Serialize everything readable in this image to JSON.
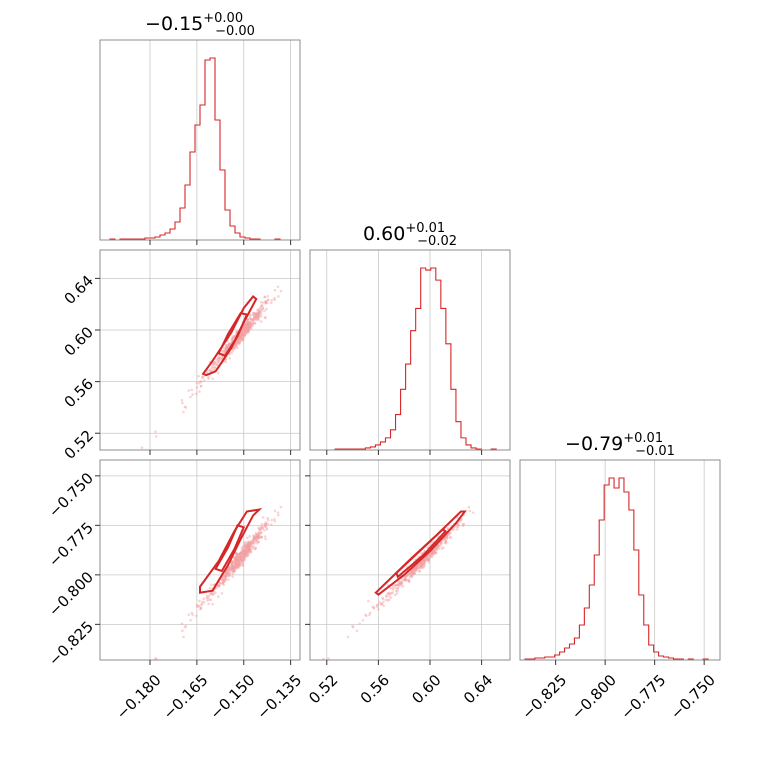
{
  "colors": {
    "series": "#d62728",
    "scatter": "#f2a0a2",
    "frame": "#8c8c8c",
    "grid": "#c8c8c8"
  },
  "chart_data": {
    "type": "corner",
    "parameters": [
      {
        "range": [
          -0.196,
          -0.132
        ],
        "ticks": [
          -0.18,
          -0.165,
          -0.15,
          -0.135
        ],
        "tick_labels": [
          "−0.180",
          "−0.165",
          "−0.150",
          "−0.135"
        ],
        "title": {
          "median": "−0.15",
          "plus": "+0.00",
          "minus": "−0.00"
        },
        "hist": {
          "edges_start": -0.196,
          "bin_width": 0.0016,
          "counts": [
            0,
            0,
            1,
            0,
            1,
            1,
            1,
            1,
            1,
            2,
            2,
            3,
            5,
            7,
            11,
            18,
            32,
            55,
            88,
            115,
            135,
            180,
            182,
            120,
            70,
            30,
            14,
            7,
            3,
            2,
            1,
            1,
            0,
            0,
            0,
            1,
            0,
            0,
            0,
            0
          ]
        }
      },
      {
        "range": [
          0.507,
          0.662
        ],
        "ticks": [
          0.52,
          0.56,
          0.6,
          0.64
        ],
        "tick_labels": [
          "0.52",
          "0.56",
          "0.60",
          "0.64"
        ],
        "title": {
          "median": "0.60",
          "plus": "+0.01",
          "minus": "−0.02"
        },
        "hist": {
          "edges_start": 0.507,
          "bin_width": 0.0039,
          "counts": [
            0,
            0,
            0,
            0,
            0,
            1,
            1,
            1,
            1,
            1,
            1,
            2,
            3,
            5,
            8,
            12,
            20,
            35,
            60,
            85,
            118,
            140,
            180,
            178,
            180,
            168,
            140,
            105,
            60,
            28,
            12,
            5,
            2,
            1,
            0,
            0,
            1,
            0,
            0,
            0
          ]
        }
      },
      {
        "range": [
          -0.843,
          -0.742
        ],
        "ticks": [
          -0.825,
          -0.8,
          -0.775,
          -0.75
        ],
        "tick_labels": [
          "−0.825",
          "−0.800",
          "−0.775",
          "−0.750"
        ],
        "title": {
          "median": "−0.79",
          "plus": "+0.01",
          "minus": "−0.01"
        },
        "hist": {
          "edges_start": -0.843,
          "bin_width": 0.0025,
          "counts": [
            0,
            1,
            1,
            2,
            2,
            3,
            3,
            5,
            8,
            12,
            16,
            22,
            35,
            52,
            75,
            105,
            140,
            175,
            182,
            172,
            182,
            168,
            150,
            110,
            65,
            35,
            15,
            8,
            4,
            3,
            2,
            1,
            1,
            0,
            1,
            0,
            0,
            1,
            0,
            0
          ]
        }
      }
    ],
    "contours": {
      "p1_p0": [
        [
          [
            -0.159,
            0.568
          ],
          [
            -0.154,
            0.586
          ],
          [
            -0.15,
            0.606
          ],
          [
            -0.146,
            0.624
          ],
          [
            -0.147,
            0.626
          ],
          [
            -0.15,
            0.617
          ],
          [
            -0.154,
            0.598
          ],
          [
            -0.16,
            0.576
          ],
          [
            -0.163,
            0.566
          ],
          [
            -0.162,
            0.565
          ],
          [
            -0.159,
            0.568
          ]
        ],
        [
          [
            -0.156,
            0.58
          ],
          [
            -0.152,
            0.595
          ],
          [
            -0.149,
            0.612
          ],
          [
            -0.151,
            0.613
          ],
          [
            -0.155,
            0.597
          ],
          [
            -0.158,
            0.582
          ],
          [
            -0.156,
            0.58
          ]
        ]
      ],
      "p2_p0": [
        [
          [
            -0.16,
            -0.808
          ],
          [
            -0.155,
            -0.795
          ],
          [
            -0.151,
            -0.782
          ],
          [
            -0.147,
            -0.77
          ],
          [
            -0.145,
            -0.767
          ],
          [
            -0.149,
            -0.768
          ],
          [
            -0.153,
            -0.778
          ],
          [
            -0.158,
            -0.793
          ],
          [
            -0.164,
            -0.806
          ],
          [
            -0.164,
            -0.809
          ],
          [
            -0.16,
            -0.808
          ]
        ],
        [
          [
            -0.157,
            -0.798
          ],
          [
            -0.153,
            -0.787
          ],
          [
            -0.15,
            -0.776
          ],
          [
            -0.152,
            -0.775
          ],
          [
            -0.155,
            -0.786
          ],
          [
            -0.159,
            -0.797
          ],
          [
            -0.157,
            -0.798
          ]
        ]
      ],
      "p2_p1": [
        [
          [
            0.56,
            -0.81
          ],
          [
            0.58,
            -0.8
          ],
          [
            0.6,
            -0.788
          ],
          [
            0.62,
            -0.774
          ],
          [
            0.627,
            -0.768
          ],
          [
            0.624,
            -0.768
          ],
          [
            0.605,
            -0.78
          ],
          [
            0.585,
            -0.792
          ],
          [
            0.566,
            -0.804
          ],
          [
            0.558,
            -0.809
          ],
          [
            0.56,
            -0.81
          ]
        ],
        [
          [
            0.575,
            -0.801
          ],
          [
            0.595,
            -0.79
          ],
          [
            0.612,
            -0.778
          ],
          [
            0.61,
            -0.777
          ],
          [
            0.592,
            -0.788
          ],
          [
            0.574,
            -0.799
          ],
          [
            0.575,
            -0.801
          ]
        ]
      ]
    }
  }
}
